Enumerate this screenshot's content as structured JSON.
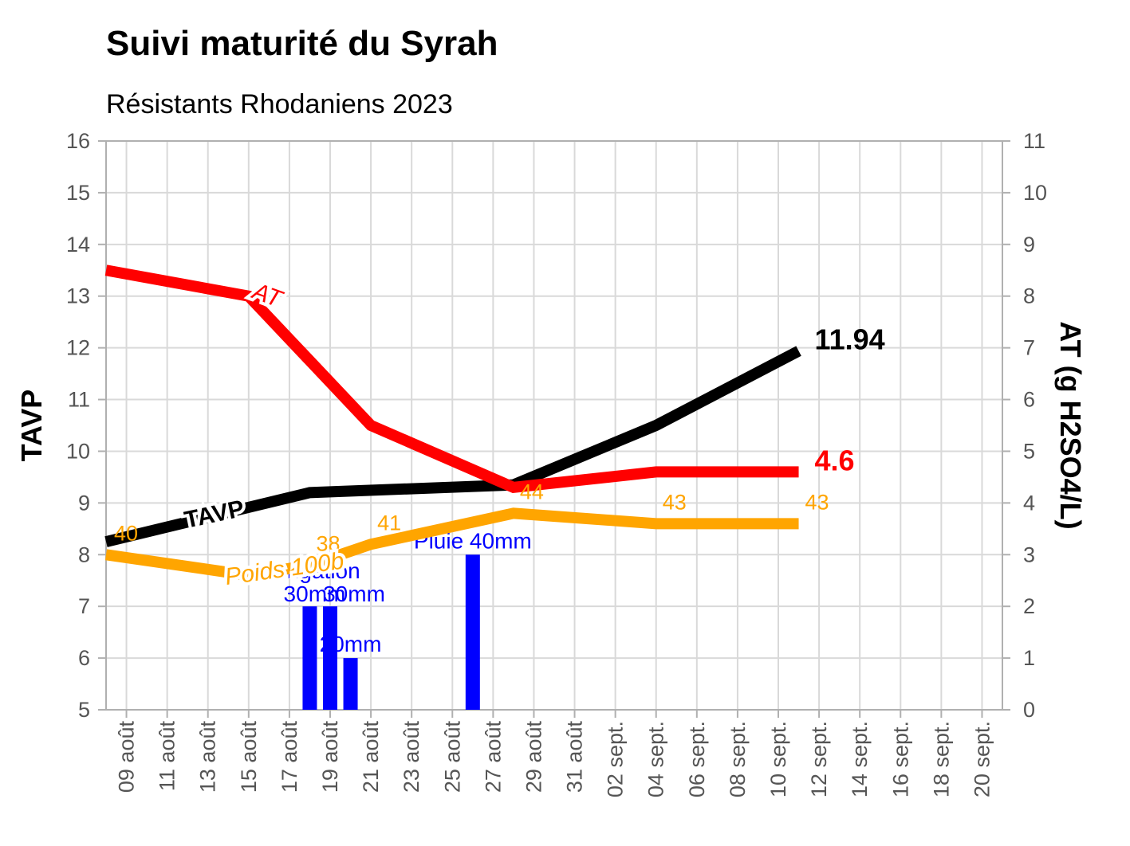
{
  "chart_data": {
    "type": "line",
    "title": "Suivi maturité du Syrah",
    "subtitle": "Résistants Rhodaniens 2023",
    "ylabel": "TAVP",
    "y2label": "AT (g H2SO4/L)",
    "ylim": [
      5,
      16
    ],
    "y2lim": [
      0,
      11
    ],
    "y_ticks": [
      "5",
      "6",
      "7",
      "8",
      "9",
      "10",
      "11",
      "12",
      "13",
      "14",
      "15",
      "16"
    ],
    "y2_ticks": [
      "0",
      "1",
      "2",
      "3",
      "4",
      "5",
      "6",
      "7",
      "8",
      "9",
      "10",
      "11"
    ],
    "x_dates": [
      "2023-08-09",
      "2023-08-11",
      "2023-08-13",
      "2023-08-15",
      "2023-08-17",
      "2023-08-19",
      "2023-08-21",
      "2023-08-23",
      "2023-08-25",
      "2023-08-27",
      "2023-08-29",
      "2023-08-31",
      "2023-09-02",
      "2023-09-04",
      "2023-09-06",
      "2023-09-08",
      "2023-09-10",
      "2023-09-12",
      "2023-09-14",
      "2023-09-16",
      "2023-09-18",
      "2023-09-20"
    ],
    "x_tick_labels": [
      "09 août",
      "11 août",
      "13 août",
      "15 août",
      "17 août",
      "19 août",
      "21 août",
      "23 août",
      "25 août",
      "27 août",
      "29 août",
      "31 août",
      "02 sept.",
      "04 sept.",
      "06 sept.",
      "08 sept.",
      "10 sept.",
      "12 sept.",
      "14 sept.",
      "16 sept.",
      "18 sept.",
      "20 sept."
    ],
    "xlim": [
      "2023-08-08",
      "2023-09-21"
    ],
    "series": [
      {
        "name": "TAVP",
        "axis": "left",
        "color": "#000000",
        "x": [
          "2023-08-08",
          "2023-08-18",
          "2023-08-28",
          "2023-09-04",
          "2023-09-11"
        ],
        "values": [
          8.25,
          9.2,
          9.35,
          10.5,
          11.94
        ],
        "end_label": "11.94"
      },
      {
        "name": "AT",
        "axis": "right",
        "color": "#ff0000",
        "x": [
          "2023-08-08",
          "2023-08-15",
          "2023-08-21",
          "2023-08-28",
          "2023-09-04",
          "2023-09-11"
        ],
        "values": [
          8.5,
          8.0,
          5.5,
          4.3,
          4.6,
          4.6
        ],
        "end_label": "4.6"
      },
      {
        "name": "Poids 100b",
        "axis": "left",
        "color": "#ffa500",
        "x": [
          "2023-08-08",
          "2023-08-15",
          "2023-08-18",
          "2023-08-21",
          "2023-08-28",
          "2023-09-04",
          "2023-09-11"
        ],
        "values": [
          8.0,
          7.6,
          7.8,
          8.2,
          8.8,
          8.6,
          8.6
        ],
        "point_labels": [
          "40",
          "",
          "38",
          "41",
          "44",
          "43",
          "43"
        ]
      }
    ],
    "bars": {
      "axis": "left",
      "color": "#0000ff",
      "x": [
        "2023-08-18",
        "2023-08-19",
        "2023-08-20",
        "2023-08-26"
      ],
      "values": [
        7,
        7,
        6,
        8
      ],
      "labels": [
        "",
        "",
        "20mm",
        "Pluie 40mm"
      ]
    },
    "annotations": [
      "Irrigation",
      "30mm",
      "30mm"
    ],
    "grid": true
  }
}
